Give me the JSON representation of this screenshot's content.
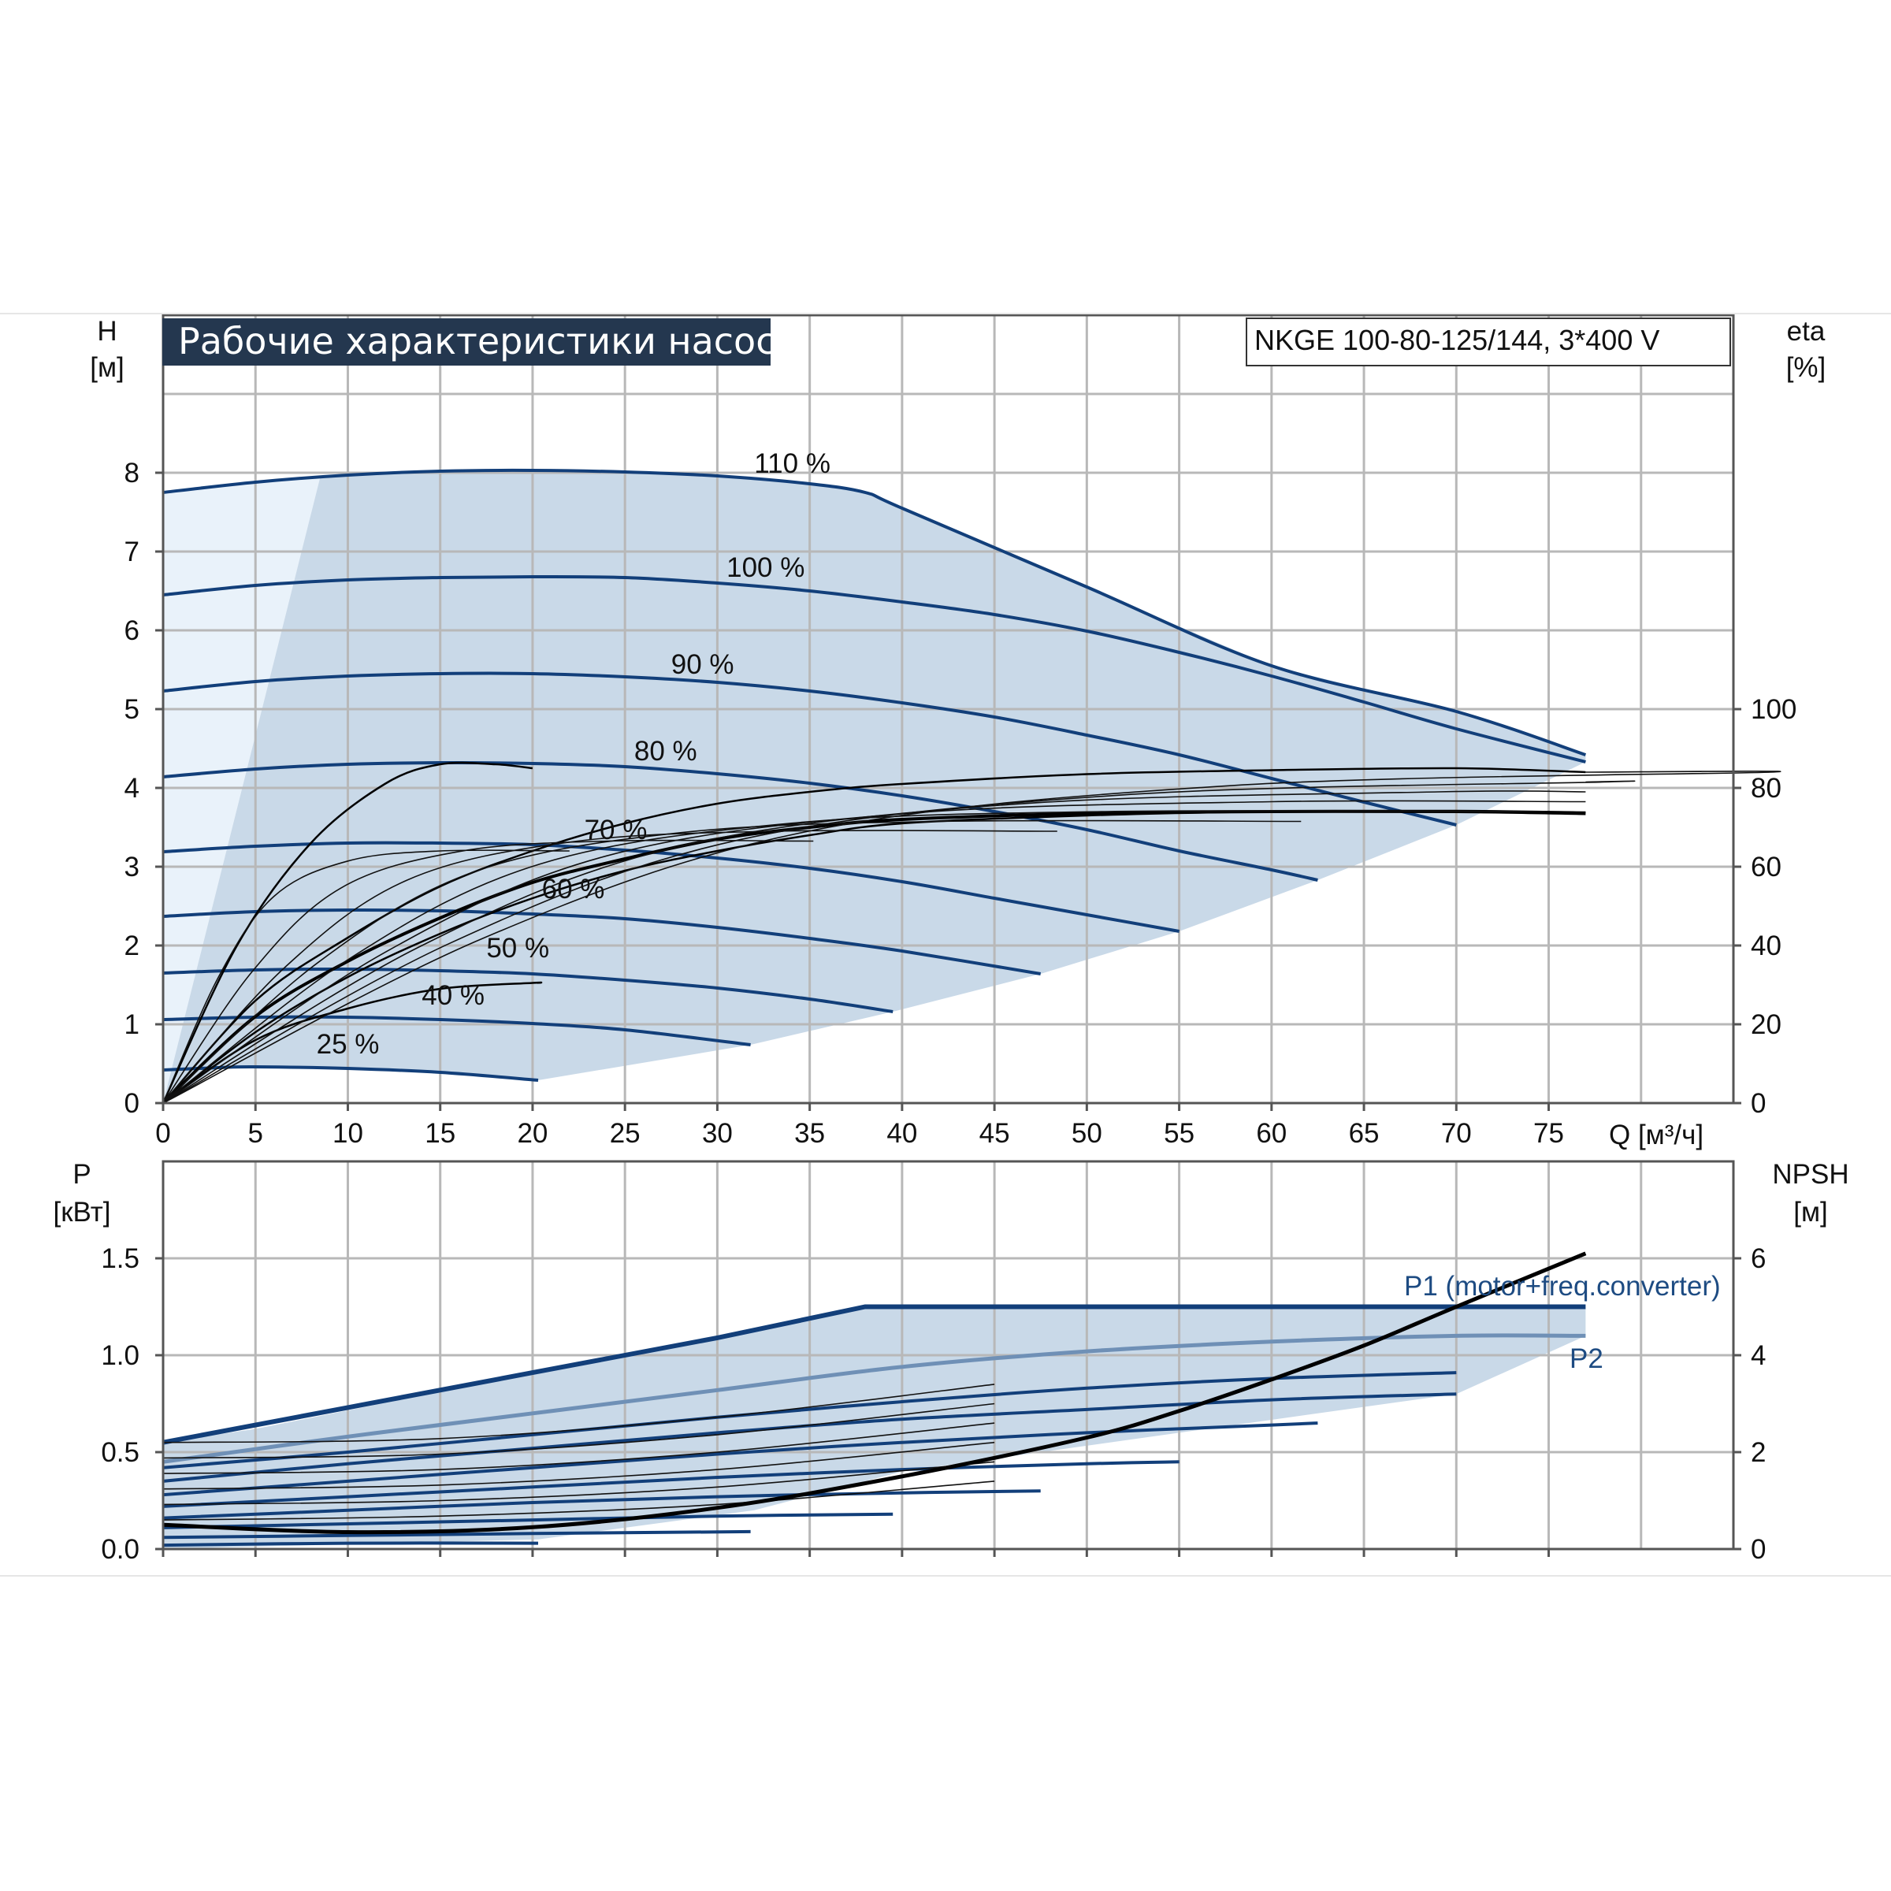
{
  "chart_data": [
    {
      "type": "line",
      "title": "Рабочие характеристики насоса",
      "model": "NKGE 100-80-125/144, 3*400 V",
      "xlabel": "Q [м³/ч]",
      "ylabel": [
        "H",
        "[м]"
      ],
      "y2label": [
        "eta",
        "[%]"
      ],
      "xlim": [
        0,
        85
      ],
      "ylim": [
        0,
        10
      ],
      "y2lim": [
        0,
        200
      ],
      "xticks": [
        0,
        5,
        10,
        15,
        20,
        25,
        30,
        35,
        40,
        45,
        50,
        55,
        60,
        65,
        70,
        75
      ],
      "yticks": [
        0,
        1,
        2,
        3,
        4,
        5,
        6,
        7,
        8
      ],
      "y2ticks": [
        0,
        20,
        40,
        60,
        80,
        100
      ],
      "grid": true,
      "colors": {
        "curve": "#123f7a",
        "area": "#c9d9e8",
        "area_light": "#e9f2fa",
        "eta": "#000000"
      },
      "series": [
        {
          "name": "110 %",
          "label_at": [
            32,
            8.0
          ],
          "x": [
            0,
            5,
            10,
            15,
            20,
            25,
            30,
            35,
            38,
            40,
            50,
            60,
            70,
            77
          ],
          "y": [
            7.75,
            7.88,
            7.97,
            8.02,
            8.03,
            8.01,
            7.96,
            7.86,
            7.75,
            7.55,
            6.55,
            5.55,
            4.97,
            4.42
          ]
        },
        {
          "name": "100 %",
          "label_at": [
            30.5,
            6.68
          ],
          "x": [
            0,
            5,
            10,
            15,
            20,
            25,
            30,
            35,
            40,
            45,
            50,
            55,
            60,
            65,
            70,
            77
          ],
          "y": [
            6.45,
            6.57,
            6.64,
            6.67,
            6.68,
            6.67,
            6.6,
            6.5,
            6.36,
            6.2,
            5.99,
            5.72,
            5.42,
            5.09,
            4.75,
            4.33
          ]
        },
        {
          "name": "90 %",
          "label_at": [
            27.5,
            5.45
          ],
          "x": [
            0,
            5,
            10,
            15,
            20,
            25,
            30,
            35,
            40,
            45,
            50,
            55,
            60,
            65,
            70
          ],
          "y": [
            5.23,
            5.35,
            5.42,
            5.45,
            5.45,
            5.41,
            5.34,
            5.23,
            5.08,
            4.9,
            4.67,
            4.42,
            4.12,
            3.82,
            3.53
          ]
        },
        {
          "name": "80 %",
          "label_at": [
            25.5,
            4.35
          ],
          "x": [
            0,
            5,
            10,
            15,
            20,
            25,
            30,
            35,
            40,
            45,
            50,
            55,
            60,
            62.5
          ],
          "y": [
            4.14,
            4.24,
            4.3,
            4.32,
            4.31,
            4.27,
            4.18,
            4.06,
            3.9,
            3.7,
            3.47,
            3.2,
            2.96,
            2.83
          ]
        },
        {
          "name": "70 %",
          "label_at": [
            22.8,
            3.35
          ],
          "x": [
            0,
            5,
            10,
            15,
            20,
            25,
            30,
            35,
            40,
            45,
            50,
            55
          ],
          "y": [
            3.19,
            3.26,
            3.3,
            3.3,
            3.28,
            3.21,
            3.11,
            2.98,
            2.81,
            2.6,
            2.39,
            2.18
          ]
        },
        {
          "name": "60 %",
          "label_at": [
            20.5,
            2.6
          ],
          "x": [
            0,
            5,
            10,
            15,
            20,
            25,
            30,
            35,
            40,
            47.5
          ],
          "y": [
            2.37,
            2.43,
            2.45,
            2.44,
            2.4,
            2.34,
            2.23,
            2.09,
            1.93,
            1.64
          ]
        },
        {
          "name": "50 %",
          "label_at": [
            17.5,
            1.85
          ],
          "x": [
            0,
            5,
            10,
            15,
            20,
            25,
            30,
            35,
            39.5
          ],
          "y": [
            1.65,
            1.69,
            1.7,
            1.68,
            1.64,
            1.56,
            1.46,
            1.32,
            1.16
          ]
        },
        {
          "name": "40 %",
          "label_at": [
            14,
            1.25
          ],
          "x": [
            0,
            5,
            10,
            15,
            20,
            25,
            31.8
          ],
          "y": [
            1.06,
            1.09,
            1.09,
            1.06,
            1.01,
            0.93,
            0.74
          ]
        },
        {
          "name": "25 %",
          "label_at": [
            8.3,
            0.63
          ],
          "x": [
            0,
            3,
            5,
            10,
            15,
            20.3
          ],
          "y": [
            0.42,
            0.45,
            0.46,
            0.44,
            0.39,
            0.29
          ]
        }
      ],
      "eta_series": [
        {
          "x": [
            0,
            5,
            10,
            15,
            20,
            20.3
          ],
          "y": [
            0,
            16,
            24,
            29,
            30.5,
            30.5
          ]
        },
        {
          "x": [
            0,
            5,
            10,
            15,
            20,
            25,
            30,
            35,
            40,
            50,
            60,
            70,
            77
          ],
          "y": [
            0,
            22,
            36,
            47,
            56,
            62,
            67,
            70,
            72,
            73.5,
            74,
            74,
            73.5
          ]
        },
        {
          "x": [
            0,
            5,
            10,
            15,
            20,
            25,
            30,
            35,
            40,
            50,
            60,
            70,
            77
          ],
          "y": [
            0,
            18,
            32,
            43,
            52,
            59,
            64,
            68,
            71,
            73,
            74,
            74.2,
            73.8
          ]
        },
        {
          "x": [
            0,
            5,
            10,
            15,
            20,
            25,
            30,
            35,
            40,
            50,
            60,
            70,
            77
          ],
          "y": [
            0,
            26,
            42,
            55,
            64,
            71,
            76,
            79,
            81,
            83.5,
            84.5,
            85,
            84
          ]
        },
        {
          "x": [
            0,
            4,
            8,
            12,
            15,
            18,
            20
          ],
          "y": [
            0,
            40,
            66,
            81,
            86,
            86,
            85
          ]
        }
      ]
    },
    {
      "type": "line",
      "ylabel": [
        "P",
        "[кВт]"
      ],
      "y2label": [
        "NPSH",
        "[м]"
      ],
      "xlim": [
        0,
        85
      ],
      "ylim": [
        0,
        2
      ],
      "y2lim": [
        0,
        8
      ],
      "yticks": [
        "0.0",
        "0.5",
        "1.0",
        "1.5"
      ],
      "yticks_values": [
        0,
        0.5,
        1.0,
        1.5
      ],
      "y2ticks": [
        0,
        2,
        4,
        6
      ],
      "grid": true,
      "series": [
        {
          "name": "P1 (motor+freq.converter)",
          "x": [
            0,
            10,
            20,
            30,
            38,
            77
          ],
          "y": [
            0.55,
            0.73,
            0.91,
            1.09,
            1.25,
            1.25
          ]
        },
        {
          "name": "P2",
          "x": [
            0,
            10,
            20,
            30,
            40,
            50,
            60,
            70,
            77
          ],
          "y": [
            0.45,
            0.58,
            0.7,
            0.82,
            0.94,
            1.02,
            1.07,
            1.1,
            1.1
          ]
        }
      ],
      "p_curves": [
        {
          "x": [
            0,
            10,
            20,
            30,
            40,
            50,
            60,
            70
          ],
          "y": [
            0.42,
            0.5,
            0.59,
            0.68,
            0.76,
            0.83,
            0.88,
            0.91
          ]
        },
        {
          "x": [
            0,
            10,
            20,
            30,
            40,
            50,
            60,
            70
          ],
          "y": [
            0.35,
            0.44,
            0.52,
            0.6,
            0.67,
            0.72,
            0.77,
            0.8
          ]
        },
        {
          "x": [
            0,
            10,
            20,
            30,
            40,
            50,
            60,
            62.5
          ],
          "y": [
            0.28,
            0.35,
            0.42,
            0.49,
            0.55,
            0.6,
            0.64,
            0.65
          ]
        },
        {
          "x": [
            0,
            10,
            20,
            30,
            40,
            50,
            55
          ],
          "y": [
            0.22,
            0.27,
            0.32,
            0.37,
            0.41,
            0.44,
            0.45
          ]
        },
        {
          "x": [
            0,
            10,
            20,
            30,
            40,
            47.5
          ],
          "y": [
            0.16,
            0.2,
            0.24,
            0.27,
            0.29,
            0.3
          ]
        },
        {
          "x": [
            0,
            10,
            20,
            30,
            39.5
          ],
          "y": [
            0.11,
            0.13,
            0.15,
            0.17,
            0.18
          ]
        },
        {
          "x": [
            0,
            10,
            20,
            31.8
          ],
          "y": [
            0.06,
            0.07,
            0.08,
            0.09
          ]
        },
        {
          "x": [
            0,
            10,
            20.3
          ],
          "y": [
            0.02,
            0.03,
            0.03
          ]
        }
      ],
      "npsh": {
        "x": [
          0,
          10,
          20,
          30,
          40,
          50,
          55,
          60,
          65,
          70,
          77
        ],
        "y": [
          0.5,
          0.35,
          0.45,
          0.85,
          1.5,
          2.3,
          2.85,
          3.5,
          4.2,
          5.0,
          6.1
        ]
      }
    }
  ]
}
